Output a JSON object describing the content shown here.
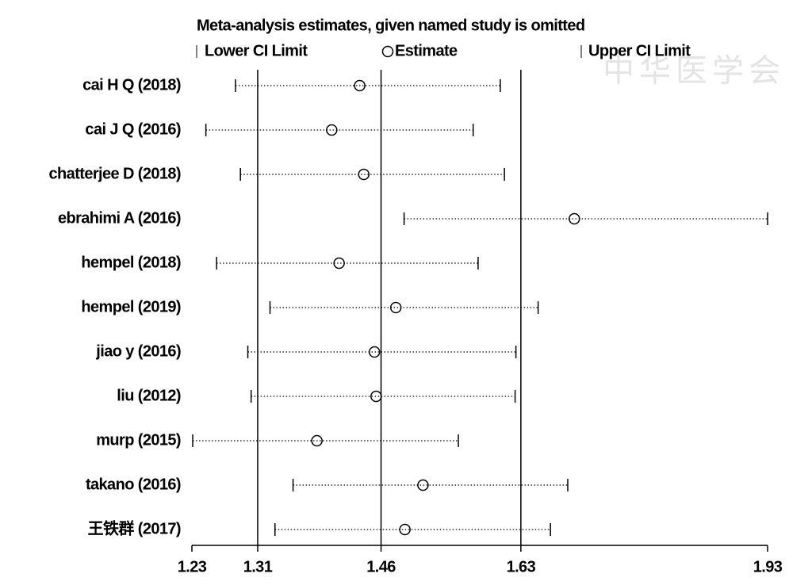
{
  "chart_data": {
    "type": "forest",
    "title": "Meta-analysis estimates, given named study is omitted",
    "watermark": "中华医学会",
    "categories": [
      "cai H Q  (2018)",
      "cai J Q  (2016)",
      "chatterjee D  (2018)",
      "ebrahimi A  (2016)",
      "hempel  (2018)",
      "hempel  (2019)",
      "jiao y  (2016)",
      "liu  (2012)",
      "murp  (2015)",
      "takano  (2016)",
      "王铁群  (2017)"
    ],
    "series": [
      {
        "name": "Lower CI Limit",
        "color": "#000000",
        "values": [
          1.283,
          1.247,
          1.289,
          1.488,
          1.26,
          1.325,
          1.298,
          1.302,
          1.231,
          1.353,
          1.331
        ]
      },
      {
        "name": "Estimate",
        "color": "#000000",
        "values": [
          1.434,
          1.4,
          1.439,
          1.695,
          1.409,
          1.478,
          1.452,
          1.454,
          1.382,
          1.511,
          1.489
        ]
      },
      {
        "name": "Upper CI Limit",
        "color": "#000000",
        "values": [
          1.605,
          1.572,
          1.61,
          1.93,
          1.578,
          1.651,
          1.624,
          1.623,
          1.554,
          1.687,
          1.666
        ]
      }
    ],
    "xlim": [
      1.23,
      1.93
    ],
    "xticks": [
      1.23,
      1.31,
      1.46,
      1.63,
      1.93
    ],
    "reference_lines": [
      1.31,
      1.46,
      1.63
    ]
  }
}
